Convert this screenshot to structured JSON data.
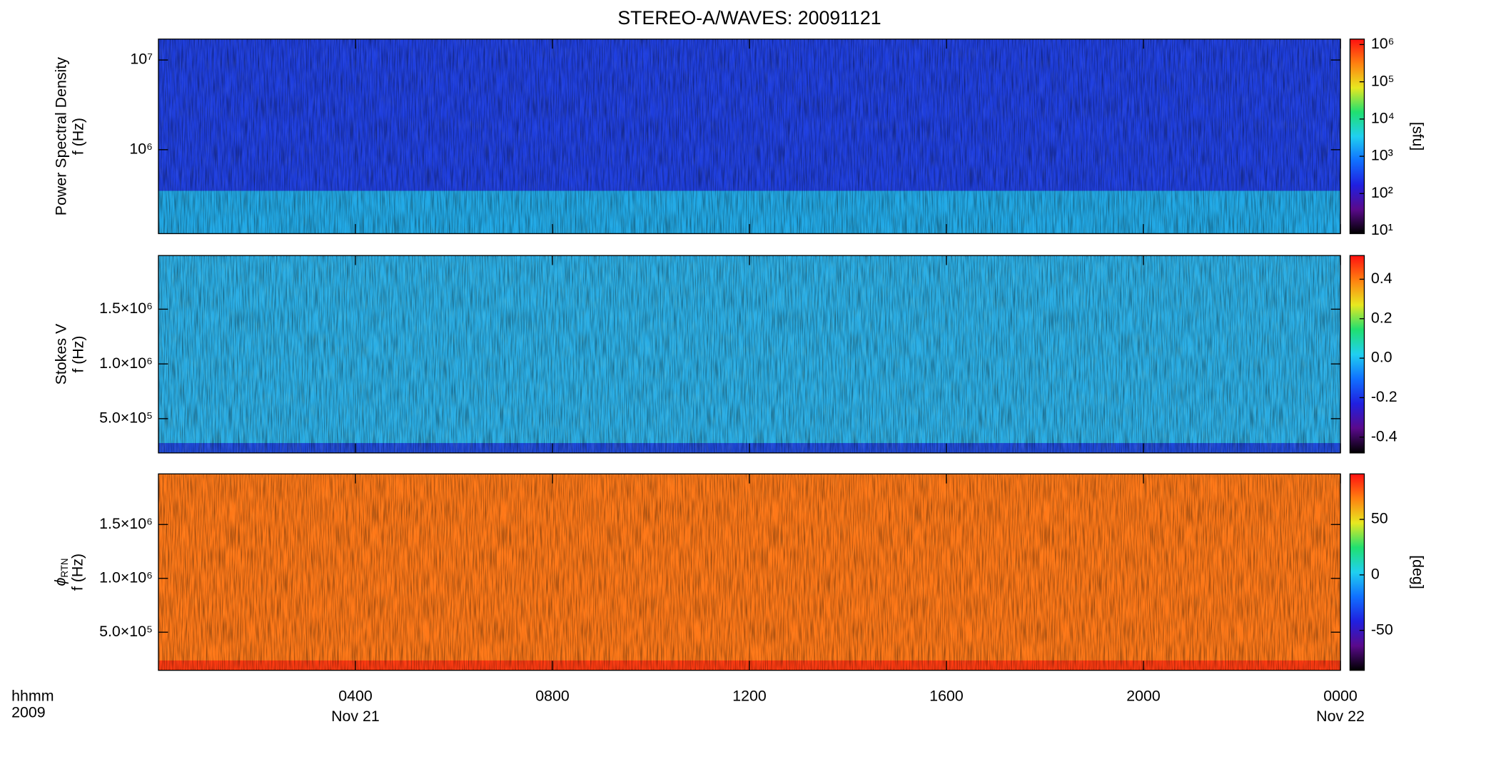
{
  "chart_data": [
    {
      "type": "heatmap",
      "title": "STEREO-A/WAVES: 20091121",
      "ylabel": [
        "Power Spectral Density",
        "f (Hz)"
      ],
      "ylog": true,
      "ylim": [
        116000,
        17100000
      ],
      "yticks": [
        {
          "value": 1000000,
          "label": "10⁶"
        },
        {
          "value": 10000000,
          "label": "10⁷"
        }
      ],
      "base_color": "#1f3fe0",
      "band_color": "#22c4e8",
      "colorbar": {
        "log": true,
        "clim": [
          8.4,
          1400000
        ],
        "label": "[sfu]",
        "ticks": [
          {
            "value": 10,
            "label": "10¹"
          },
          {
            "value": 100,
            "label": "10²"
          },
          {
            "value": 1000,
            "label": "10³"
          },
          {
            "value": 10000,
            "label": "10⁴"
          },
          {
            "value": 100000,
            "label": "10⁵"
          },
          {
            "value": 1000000,
            "label": "10⁶"
          }
        ]
      }
    },
    {
      "type": "heatmap",
      "ylabel": [
        "Stokes V",
        "f (Hz)"
      ],
      "ylog": false,
      "ylim": [
        187000,
        1990000
      ],
      "yticks": [
        {
          "value": 500000,
          "label": "5.0×10⁵"
        },
        {
          "value": 1000000,
          "label": "1.0×10⁶"
        },
        {
          "value": 1500000,
          "label": "1.5×10⁶"
        }
      ],
      "base_color": "#2aaee6",
      "band_color": "#1c30d8",
      "colorbar": {
        "log": false,
        "clim": [
          -0.48,
          0.52
        ],
        "ticks": [
          {
            "value": -0.4,
            "label": "-0.4"
          },
          {
            "value": -0.2,
            "label": "-0.2"
          },
          {
            "value": 0,
            "label": "0.0"
          },
          {
            "value": 0.2,
            "label": "0.2"
          },
          {
            "value": 0.4,
            "label": "0.4"
          }
        ]
      }
    },
    {
      "type": "heatmap",
      "ylabel_symbol": "ϕ",
      "ylabel_subscript": "RTN",
      "ylabel": [
        "f (Hz)"
      ],
      "ylog": false,
      "ylim": [
        146000,
        1970000
      ],
      "yticks": [
        {
          "value": 500000,
          "label": "5.0×10⁵"
        },
        {
          "value": 1000000,
          "label": "1.0×10⁶"
        },
        {
          "value": 1500000,
          "label": "1.5×10⁶"
        }
      ],
      "base_color": "#ff7818",
      "band_color": "#ff2a10",
      "colorbar": {
        "log": false,
        "clim": [
          -86,
          91
        ],
        "label": "[deg]",
        "ticks": [
          -50,
          0,
          50
        ]
      },
      "xlim": [
        0,
        24
      ],
      "xticks": [
        {
          "value": 4,
          "label": "0400"
        },
        {
          "value": 8,
          "label": "0800"
        },
        {
          "value": 12,
          "label": "1200"
        },
        {
          "value": 16,
          "label": "1600"
        },
        {
          "value": 20,
          "label": "2000"
        },
        {
          "value": 24,
          "label": "0000"
        }
      ],
      "xunit_label": "hhmm",
      "year_label": "2009",
      "date_labels": [
        {
          "value": 4,
          "label": "Nov 21"
        },
        {
          "value": 24,
          "label": "Nov 22"
        }
      ]
    }
  ],
  "colormap": [
    "#000000",
    "#5a0a8c",
    "#2020e0",
    "#1070ff",
    "#20d0f0",
    "#20e070",
    "#e8e820",
    "#ff8010",
    "#ff1010"
  ]
}
